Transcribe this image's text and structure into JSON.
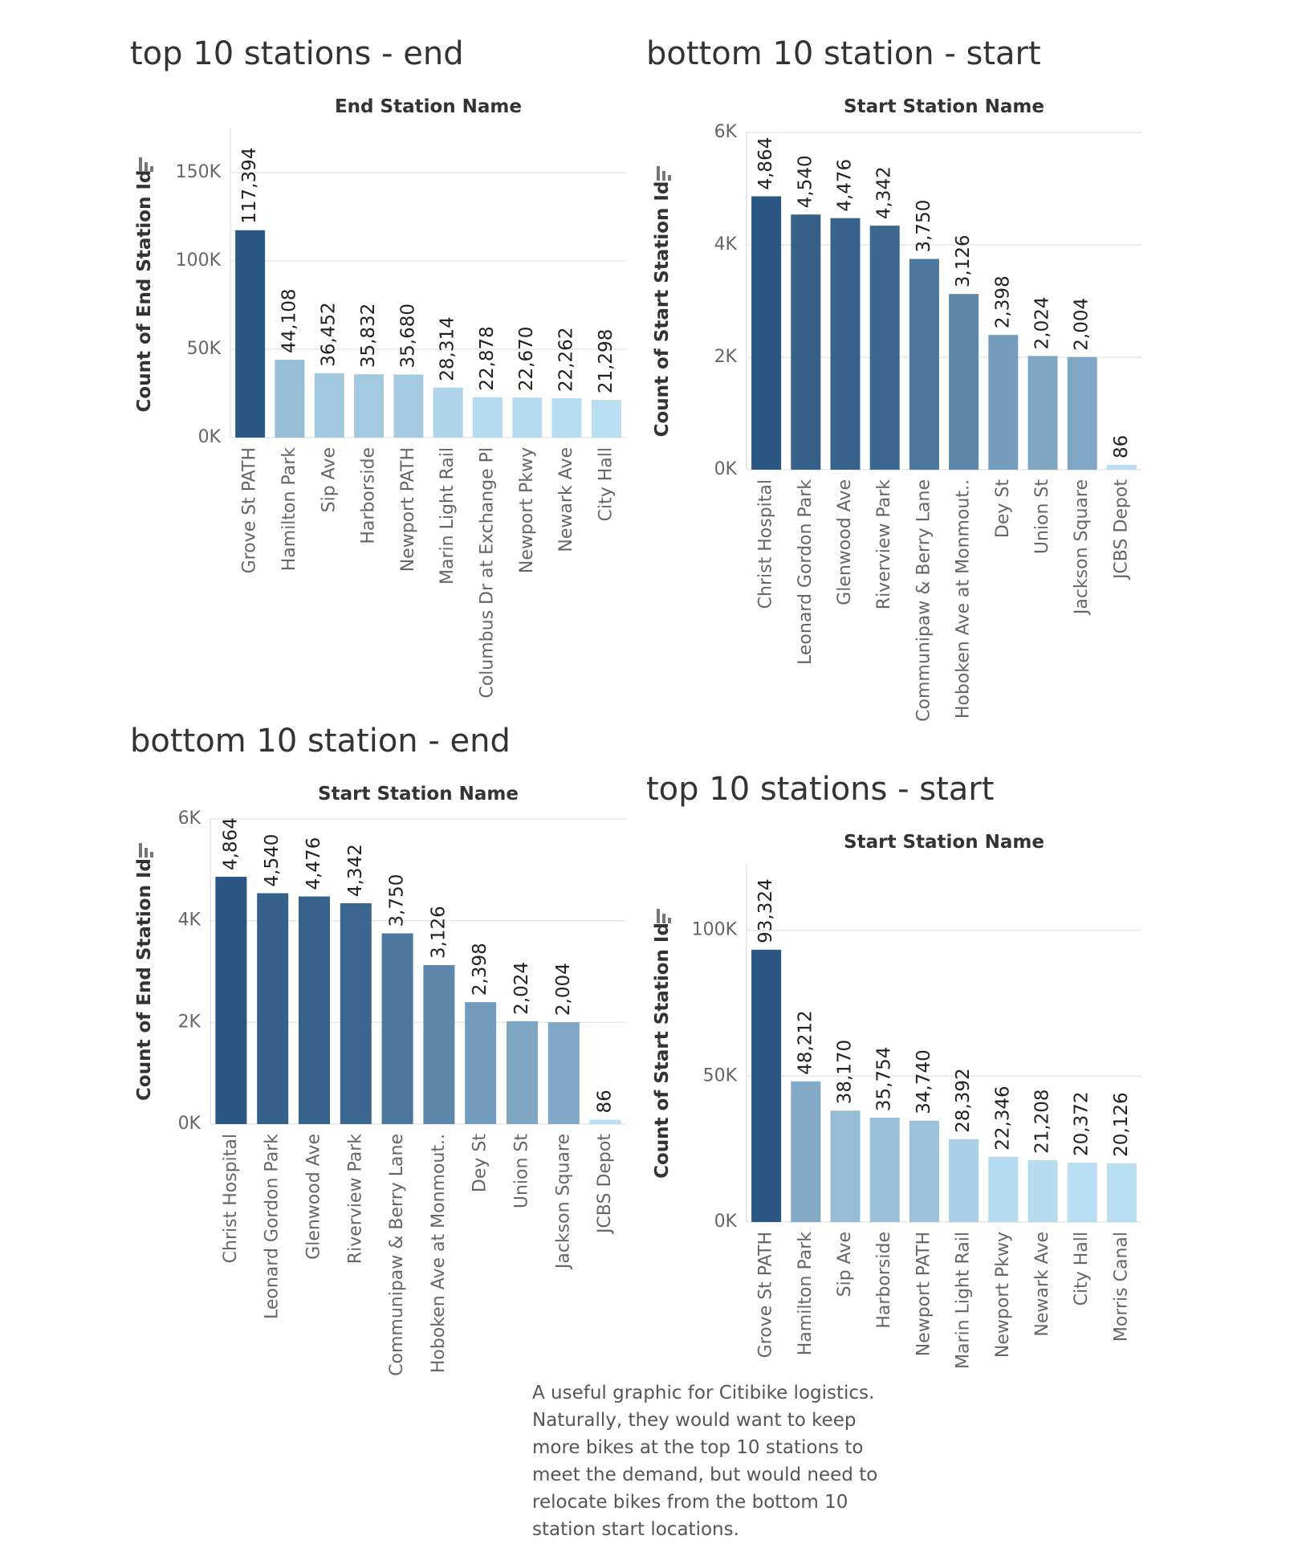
{
  "charts": [
    {
      "panel_title": "top 10 stations - end",
      "chart_data": {
        "type": "bar",
        "title": "top 10 stations - end",
        "xlabel": "End Station Name",
        "ylabel": "Count of End Station Id",
        "categories": [
          "Grove St PATH",
          "Hamilton Park",
          "Sip Ave",
          "Harborside",
          "Newport PATH",
          "Marin Light Rail",
          "Columbus Dr at Exchange Pl",
          "Newport Pkwy",
          "Newark Ave",
          "City Hall"
        ],
        "values": [
          117394,
          44108,
          36452,
          35832,
          35680,
          28314,
          22878,
          22670,
          22262,
          21298
        ],
        "value_labels": [
          "117,394",
          "44,108",
          "36,452",
          "35,832",
          "35,680",
          "28,314",
          "22,878",
          "22,670",
          "22,262",
          "21,298"
        ],
        "yticks": [
          0,
          50000,
          100000,
          150000
        ],
        "ytick_labels": [
          "0K",
          "50K",
          "100K",
          "150K"
        ],
        "ylim": [
          0,
          175000
        ],
        "sort_icon": "sort-descending-icon"
      }
    },
    {
      "panel_title": "bottom 10 station - start",
      "chart_data": {
        "type": "bar",
        "title": "bottom 10 station - start",
        "xlabel": "Start Station Name",
        "ylabel": "Count of Start Station Id",
        "categories": [
          "Christ Hospital",
          "Leonard Gordon Park",
          "Glenwood Ave",
          "Riverview Park",
          "Communipaw & Berry Lane",
          "Hoboken Ave at Monmout..",
          "Dey St",
          "Union St",
          "Jackson Square",
          "JCBS Depot"
        ],
        "values": [
          4864,
          4540,
          4476,
          4342,
          3750,
          3126,
          2398,
          2024,
          2004,
          86
        ],
        "value_labels": [
          "4,864",
          "4,540",
          "4,476",
          "4,342",
          "3,750",
          "3,126",
          "2,398",
          "2,024",
          "2,004",
          "86"
        ],
        "yticks": [
          0,
          2000,
          4000,
          6000
        ],
        "ytick_labels": [
          "0K",
          "2K",
          "4K",
          "6K"
        ],
        "ylim": [
          0,
          6000
        ],
        "sort_icon": "sort-descending-icon"
      }
    },
    {
      "panel_title": "bottom 10 station - end",
      "chart_data": {
        "type": "bar",
        "title": "bottom 10 station - end",
        "xlabel": "Start Station Name",
        "ylabel": "Count of End Station Id",
        "categories": [
          "Christ Hospital",
          "Leonard Gordon Park",
          "Glenwood Ave",
          "Riverview Park",
          "Communipaw & Berry Lane",
          "Hoboken Ave at Monmout..",
          "Dey St",
          "Union St",
          "Jackson Square",
          "JCBS Depot"
        ],
        "values": [
          4864,
          4540,
          4476,
          4342,
          3750,
          3126,
          2398,
          2024,
          2004,
          86
        ],
        "value_labels": [
          "4,864",
          "4,540",
          "4,476",
          "4,342",
          "3,750",
          "3,126",
          "2,398",
          "2,024",
          "2,004",
          "86"
        ],
        "yticks": [
          0,
          2000,
          4000,
          6000
        ],
        "ytick_labels": [
          "0K",
          "2K",
          "4K",
          "6K"
        ],
        "ylim": [
          0,
          6000
        ],
        "sort_icon": "sort-descending-icon"
      }
    },
    {
      "panel_title": "top 10 stations - start",
      "chart_data": {
        "type": "bar",
        "title": "top 10 stations - start",
        "xlabel": "Start Station Name",
        "ylabel": "Count of Start Station Id",
        "categories": [
          "Grove St PATH",
          "Hamilton Park",
          "Sip Ave",
          "Harborside",
          "Newport PATH",
          "Marin Light Rail",
          "Newport Pkwy",
          "Newark Ave",
          "City Hall",
          "Morris Canal"
        ],
        "values": [
          93324,
          48212,
          38170,
          35754,
          34740,
          28392,
          22346,
          21208,
          20372,
          20126
        ],
        "value_labels": [
          "93,324",
          "48,212",
          "38,170",
          "35,754",
          "34,740",
          "28,392",
          "22,346",
          "21,208",
          "20,372",
          "20,126"
        ],
        "yticks": [
          0,
          50000,
          100000
        ],
        "ytick_labels": [
          "0K",
          "50K",
          "100K"
        ],
        "ylim": [
          0,
          123000
        ],
        "sort_icon": "sort-descending-icon"
      }
    }
  ],
  "caption_lines": [
    "A useful graphic for Citibike logistics.",
    "Naturally, they would want to keep",
    "more bikes at the top 10 stations to",
    "meet the demand, but would need to",
    "relocate bikes from the bottom 10",
    "station start locations."
  ],
  "colors": {
    "bar_dark": "#2a5783",
    "bar_light": "#b9ddf1",
    "gridline": "#e6e6e6",
    "text_dark": "#333333",
    "text_muted": "#666666"
  }
}
